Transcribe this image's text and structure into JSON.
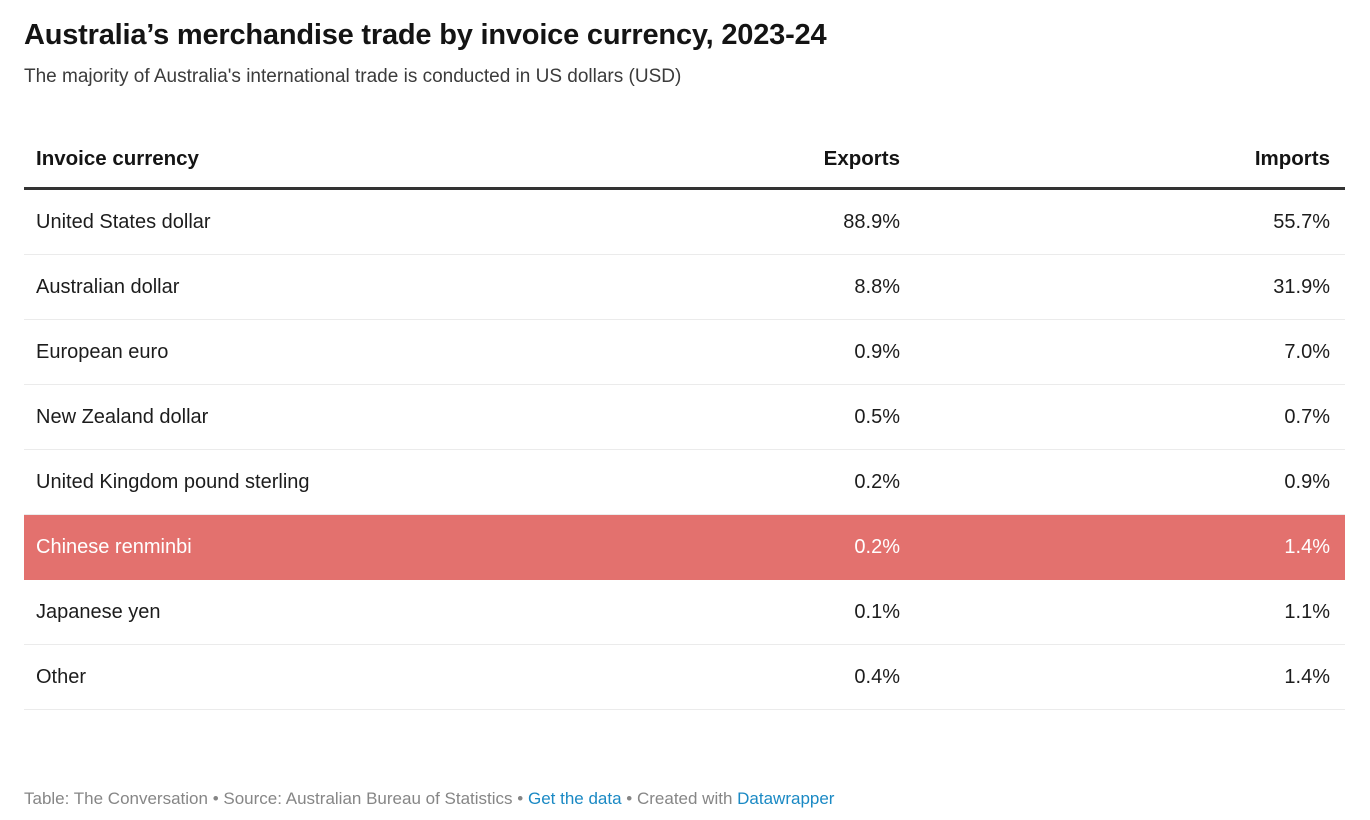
{
  "header": {
    "title": "Australia’s merchandise trade by invoice currency, 2023-24",
    "subtitle": "The majority of Australia's international trade is conducted in US dollars (USD)"
  },
  "table": {
    "columns": {
      "currency": "Invoice currency",
      "exports": "Exports",
      "imports": "Imports"
    },
    "rows": [
      {
        "currency": "United States dollar",
        "exports": "88.9%",
        "imports": "55.7%"
      },
      {
        "currency": "Australian dollar",
        "exports": "8.8%",
        "imports": "31.9%"
      },
      {
        "currency": "European euro",
        "exports": "0.9%",
        "imports": "7.0%"
      },
      {
        "currency": "New Zealand dollar",
        "exports": "0.5%",
        "imports": "0.7%"
      },
      {
        "currency": "United Kingdom pound sterling",
        "exports": "0.2%",
        "imports": "0.9%"
      },
      {
        "currency": "Chinese renminbi",
        "exports": "0.2%",
        "imports": "1.4%"
      },
      {
        "currency": "Japanese yen",
        "exports": "0.1%",
        "imports": "1.1%"
      },
      {
        "currency": "Other",
        "exports": "0.4%",
        "imports": "1.4%"
      }
    ],
    "highlighted_row": "Chinese renminbi",
    "highlight_color": "#e3716e"
  },
  "footer": {
    "credit": "Table: The Conversation",
    "separator": "•",
    "source": "Source: Australian Bureau of Statistics",
    "get_data_label": "Get the data",
    "created_with": "Created with",
    "datawrapper_label": "Datawrapper",
    "link_color": "#1a89c4"
  },
  "chart_data": {
    "type": "table",
    "title": "Australia’s merchandise trade by invoice currency, 2023-24",
    "subtitle": "The majority of Australia's international trade is conducted in US dollars (USD)",
    "columns": [
      "Invoice currency",
      "Exports",
      "Imports"
    ],
    "units": "%",
    "rows": [
      [
        "United States dollar",
        88.9,
        55.7
      ],
      [
        "Australian dollar",
        8.8,
        31.9
      ],
      [
        "European euro",
        0.9,
        7.0
      ],
      [
        "New Zealand dollar",
        0.5,
        0.7
      ],
      [
        "United Kingdom pound sterling",
        0.2,
        0.9
      ],
      [
        "Chinese renminbi",
        0.2,
        1.4
      ],
      [
        "Japanese yen",
        0.1,
        1.1
      ],
      [
        "Other",
        0.4,
        1.4
      ]
    ],
    "highlighted_row": "Chinese renminbi",
    "highlight_color": "#e3716e",
    "source": "Australian Bureau of Statistics",
    "table_credit": "The Conversation"
  }
}
